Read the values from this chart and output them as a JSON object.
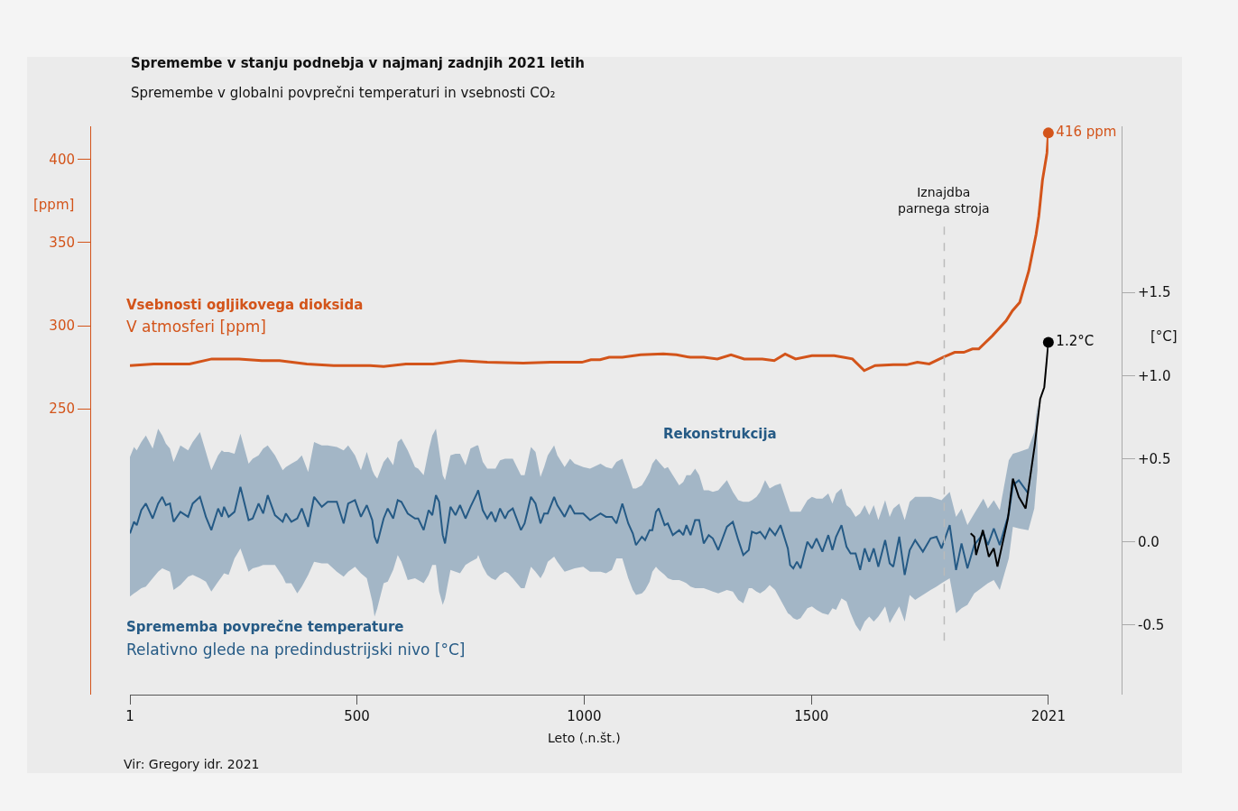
{
  "chart_data": {
    "type": "line",
    "title": "Spremembe v stanju podnebja v najmanj zadnjih 2021 letih",
    "subtitle": "Spremembe v globalni povprečni temperaturi in vsebnosti CO₂",
    "xlabel": "Leto (.n.št.)",
    "ylabel": "[ppm]",
    "y2label": "[°C]",
    "annotations": [
      "Vsebnosti ogljikovega dioksida",
      "V atmosferi [ppm]",
      "Sprememba povprečne temperature",
      "Relativno glede na predindustrijski nivo [°C]",
      "Vir: Gregory idr. 2021"
    ],
    "xlim": [
      1,
      2021
    ],
    "xticks": [
      1,
      500,
      1000,
      1500,
      2021
    ],
    "ylim": [
      78,
      420
    ],
    "yticks": [
      250,
      300,
      350,
      400
    ],
    "y2lim": [
      -0.92,
      2.5
    ],
    "y2ticks": [
      {
        "value": -0.5,
        "label": "-0.5"
      },
      {
        "value": 0,
        "label": "0.0"
      },
      {
        "value": 0.5,
        "label": "+0.5"
      },
      {
        "value": 1,
        "label": "+1.0"
      },
      {
        "value": 1.5,
        "label": "+1.5"
      }
    ],
    "grid": false,
    "legend": false,
    "ref_lines": [
      {
        "axis": "x",
        "value": 1792,
        "label": "Iznajdba\nparnega stroja",
        "color": "#bbbbbb",
        "line_style": "dashed"
      }
    ],
    "series": [
      {
        "color": "#d3541a",
        "axis": "y",
        "x": [
          1,
          53,
          132,
          181,
          241,
          291,
          330,
          390,
          449,
          529,
          559,
          608,
          668,
          727,
          787,
          866,
          926,
          995,
          1015,
          1035,
          1055,
          1084,
          1124,
          1174,
          1203,
          1233,
          1263,
          1293,
          1323,
          1352,
          1392,
          1418,
          1442,
          1465,
          1501,
          1550,
          1570,
          1590,
          1616,
          1640,
          1680,
          1709,
          1733,
          1759,
          1789,
          1815,
          1835,
          1854,
          1868,
          1898,
          1928,
          1942,
          1958,
          1978,
          1994,
          2000,
          2008,
          2018,
          2021
        ],
        "values": [
          276,
          277,
          277,
          280,
          280,
          279,
          279,
          277,
          276,
          276,
          275.5,
          277,
          277,
          279,
          278,
          277.5,
          278,
          278,
          279.5,
          279.5,
          281,
          281,
          282.5,
          283,
          282.5,
          281,
          281,
          280,
          282.5,
          280,
          280,
          279,
          283,
          280,
          282,
          282,
          281,
          280,
          273,
          276,
          276.5,
          276.5,
          278,
          277,
          281,
          284,
          284,
          286,
          286,
          294,
          303,
          309,
          314,
          333,
          355,
          366,
          387.5,
          404,
          416
        ],
        "value_labels": [
          null,
          null,
          null,
          null,
          null,
          null,
          null,
          null,
          null,
          null,
          null,
          null,
          null,
          null,
          null,
          null,
          null,
          null,
          null,
          null,
          null,
          null,
          null,
          null,
          null,
          null,
          null,
          null,
          null,
          null,
          null,
          null,
          null,
          null,
          null,
          null,
          null,
          null,
          null,
          null,
          null,
          null,
          null,
          null,
          null,
          null,
          null,
          null,
          null,
          null,
          null,
          null,
          null,
          null,
          null,
          null,
          null,
          null,
          "416 ppm"
        ]
      },
      {
        "name": "Rekonstrukcija",
        "color": "#255a85",
        "axis": "y2",
        "x": [
          1,
          10,
          16,
          26,
          36,
          51,
          63,
          72,
          80,
          89,
          97,
          112,
          129,
          139,
          155,
          168,
          180,
          195,
          203,
          208,
          218,
          231,
          244,
          262,
          271,
          284,
          294,
          304,
          320,
          337,
          344,
          356,
          369,
          379,
          393,
          406,
          423,
          436,
          456,
          471,
          481,
          496,
          509,
          522,
          534,
          539,
          545,
          559,
          568,
          580,
          590,
          598,
          612,
          628,
          635,
          647,
          658,
          666,
          674,
          681,
          689,
          694,
          706,
          717,
          727,
          739,
          750,
          764,
          767,
          777,
          787,
          796,
          805,
          815,
          826,
          833,
          843,
          861,
          869,
          883,
          893,
          904,
          912,
          920,
          934,
          941,
          957,
          969,
          979,
          998,
          1013,
          1036,
          1048,
          1061,
          1071,
          1084,
          1097,
          1107,
          1114,
          1127,
          1134,
          1144,
          1150,
          1158,
          1164,
          1177,
          1184,
          1195,
          1209,
          1218,
          1225,
          1234,
          1244,
          1253,
          1263,
          1274,
          1283,
          1295,
          1314,
          1327,
          1339,
          1350,
          1362,
          1369,
          1379,
          1387,
          1398,
          1408,
          1420,
          1432,
          1448,
          1453,
          1460,
          1468,
          1476,
          1491,
          1501,
          1511,
          1524,
          1537,
          1546,
          1554,
          1566,
          1577,
          1586,
          1597,
          1607,
          1617,
          1627,
          1637,
          1647,
          1662,
          1672,
          1680,
          1693,
          1705,
          1716,
          1728,
          1745,
          1762,
          1775,
          1786,
          1804,
          1818,
          1830,
          1843,
          1858,
          1878,
          1888,
          1901,
          1914,
          1934,
          1943,
          1956,
          1977,
          1990,
          1997
        ],
        "values": [
          0.05,
          0.12,
          0.1,
          0.19,
          0.23,
          0.14,
          0.23,
          0.27,
          0.22,
          0.23,
          0.12,
          0.18,
          0.15,
          0.23,
          0.27,
          0.15,
          0.07,
          0.2,
          0.15,
          0.21,
          0.15,
          0.18,
          0.33,
          0.13,
          0.14,
          0.23,
          0.17,
          0.28,
          0.16,
          0.12,
          0.17,
          0.12,
          0.14,
          0.2,
          0.09,
          0.27,
          0.21,
          0.24,
          0.24,
          0.11,
          0.23,
          0.25,
          0.15,
          0.22,
          0.13,
          0.03,
          -0.01,
          0.14,
          0.2,
          0.14,
          0.25,
          0.24,
          0.17,
          0.14,
          0.14,
          0.07,
          0.19,
          0.16,
          0.28,
          0.24,
          0.04,
          -0.01,
          0.21,
          0.16,
          0.22,
          0.14,
          0.21,
          0.29,
          0.31,
          0.19,
          0.14,
          0.18,
          0.12,
          0.2,
          0.14,
          0.18,
          0.2,
          0.07,
          0.11,
          0.27,
          0.23,
          0.11,
          0.17,
          0.17,
          0.27,
          0.22,
          0.15,
          0.22,
          0.17,
          0.17,
          0.13,
          0.17,
          0.15,
          0.15,
          0.11,
          0.23,
          0.11,
          0.05,
          -0.02,
          0.03,
          0.01,
          0.07,
          0.07,
          0.18,
          0.2,
          0.1,
          0.11,
          0.04,
          0.07,
          0.04,
          0.1,
          0.04,
          0.13,
          0.13,
          -0.01,
          0.04,
          0.02,
          -0.05,
          0.09,
          0.12,
          0.01,
          -0.08,
          -0.05,
          0.06,
          0.05,
          0.06,
          0.02,
          0.08,
          0.04,
          0.1,
          -0.04,
          -0.14,
          -0.16,
          -0.12,
          -0.16,
          0.0,
          -0.04,
          0.02,
          -0.06,
          0.04,
          -0.05,
          0.03,
          0.1,
          -0.03,
          -0.07,
          -0.07,
          -0.17,
          -0.04,
          -0.12,
          -0.04,
          -0.15,
          0.01,
          -0.13,
          -0.15,
          0.03,
          -0.2,
          -0.05,
          0.01,
          -0.06,
          0.02,
          0.03,
          -0.04,
          0.1,
          -0.17,
          -0.01,
          -0.16,
          -0.02,
          0.05,
          -0.02,
          0.08,
          -0.02,
          0.17,
          0.34,
          0.37,
          0.29,
          null,
          null
        ],
        "upper": [
          0.51,
          0.57,
          0.55,
          0.6,
          0.64,
          0.56,
          0.68,
          0.64,
          0.59,
          0.56,
          0.48,
          0.58,
          0.55,
          0.6,
          0.66,
          0.54,
          0.43,
          0.52,
          0.55,
          0.54,
          0.54,
          0.53,
          0.65,
          0.47,
          0.5,
          0.52,
          0.56,
          0.58,
          0.52,
          0.43,
          0.45,
          0.47,
          0.49,
          0.52,
          0.42,
          0.6,
          0.58,
          0.58,
          0.57,
          0.55,
          0.58,
          0.52,
          0.43,
          0.54,
          0.43,
          0.4,
          0.38,
          0.48,
          0.51,
          0.46,
          0.6,
          0.62,
          0.55,
          0.45,
          0.44,
          0.4,
          0.55,
          0.64,
          0.68,
          0.55,
          0.4,
          0.37,
          0.52,
          0.53,
          0.53,
          0.46,
          0.56,
          0.58,
          0.58,
          0.48,
          0.44,
          0.44,
          0.44,
          0.49,
          0.5,
          0.5,
          0.5,
          0.4,
          0.4,
          0.57,
          0.54,
          0.39,
          0.45,
          0.52,
          0.58,
          0.52,
          0.45,
          0.5,
          0.47,
          0.45,
          0.44,
          0.47,
          0.45,
          0.44,
          0.48,
          0.5,
          0.4,
          0.32,
          0.32,
          0.34,
          0.37,
          0.42,
          0.47,
          0.5,
          0.48,
          0.44,
          0.45,
          0.4,
          0.34,
          0.36,
          0.4,
          0.4,
          0.44,
          0.4,
          0.31,
          0.31,
          0.3,
          0.31,
          0.37,
          0.3,
          0.25,
          0.24,
          0.24,
          0.25,
          0.27,
          0.3,
          0.37,
          0.32,
          0.34,
          0.35,
          0.22,
          0.18,
          0.18,
          0.18,
          0.18,
          0.25,
          0.27,
          0.26,
          0.26,
          0.29,
          0.23,
          0.29,
          0.32,
          0.22,
          0.2,
          0.15,
          0.17,
          0.22,
          0.16,
          0.22,
          0.13,
          0.25,
          0.15,
          0.2,
          0.23,
          0.13,
          0.24,
          0.27,
          0.27,
          0.27,
          0.26,
          0.25,
          0.3,
          0.15,
          0.2,
          0.1,
          0.17,
          0.26,
          0.2,
          0.25,
          0.19,
          0.49,
          0.53,
          0.54,
          0.56,
          0.66,
          0.83
        ],
        "lower": [
          -0.33,
          -0.31,
          -0.3,
          -0.28,
          -0.27,
          -0.22,
          -0.18,
          -0.16,
          -0.17,
          -0.18,
          -0.29,
          -0.26,
          -0.21,
          -0.2,
          -0.22,
          -0.24,
          -0.3,
          -0.24,
          -0.21,
          -0.19,
          -0.2,
          -0.1,
          -0.04,
          -0.18,
          -0.16,
          -0.15,
          -0.14,
          -0.14,
          -0.14,
          -0.21,
          -0.25,
          -0.25,
          -0.31,
          -0.27,
          -0.2,
          -0.12,
          -0.13,
          -0.13,
          -0.18,
          -0.21,
          -0.18,
          -0.15,
          -0.19,
          -0.22,
          -0.36,
          -0.45,
          -0.4,
          -0.25,
          -0.24,
          -0.17,
          -0.08,
          -0.12,
          -0.23,
          -0.22,
          -0.23,
          -0.25,
          -0.2,
          -0.14,
          -0.14,
          -0.3,
          -0.38,
          -0.34,
          -0.17,
          -0.18,
          -0.19,
          -0.14,
          -0.12,
          -0.1,
          -0.08,
          -0.15,
          -0.2,
          -0.22,
          -0.23,
          -0.2,
          -0.18,
          -0.19,
          -0.22,
          -0.28,
          -0.28,
          -0.15,
          -0.18,
          -0.22,
          -0.18,
          -0.12,
          -0.09,
          -0.12,
          -0.18,
          -0.17,
          -0.16,
          -0.15,
          -0.18,
          -0.18,
          -0.19,
          -0.17,
          -0.1,
          -0.1,
          -0.22,
          -0.29,
          -0.32,
          -0.31,
          -0.29,
          -0.24,
          -0.18,
          -0.15,
          -0.17,
          -0.2,
          -0.22,
          -0.23,
          -0.23,
          -0.24,
          -0.25,
          -0.27,
          -0.28,
          -0.28,
          -0.28,
          -0.29,
          -0.3,
          -0.31,
          -0.29,
          -0.3,
          -0.35,
          -0.37,
          -0.28,
          -0.28,
          -0.3,
          -0.31,
          -0.29,
          -0.26,
          -0.29,
          -0.35,
          -0.43,
          -0.44,
          -0.46,
          -0.47,
          -0.46,
          -0.4,
          -0.39,
          -0.41,
          -0.43,
          -0.44,
          -0.4,
          -0.41,
          -0.34,
          -0.36,
          -0.43,
          -0.5,
          -0.54,
          -0.48,
          -0.45,
          -0.48,
          -0.45,
          -0.39,
          -0.49,
          -0.45,
          -0.39,
          -0.48,
          -0.32,
          -0.35,
          -0.32,
          -0.29,
          -0.27,
          -0.25,
          -0.22,
          -0.43,
          -0.4,
          -0.38,
          -0.31,
          -0.27,
          -0.25,
          -0.23,
          -0.29,
          -0.1,
          0.09,
          0.08,
          0.07,
          0.2,
          0.43
        ]
      },
      {
        "color": "#000000",
        "axis": "y2",
        "x": [
          1850,
          1858,
          1862,
          1877,
          1890,
          1901,
          1909,
          1932,
          1943,
          1956,
          1971,
          1991,
          2003,
          2012,
          2021
        ],
        "values": [
          0.05,
          0.03,
          -0.08,
          0.07,
          -0.09,
          -0.04,
          -0.15,
          0.14,
          0.38,
          0.27,
          0.2,
          0.58,
          0.86,
          0.93,
          1.2
        ],
        "value_labels": [
          null,
          null,
          null,
          null,
          null,
          null,
          null,
          null,
          null,
          null,
          null,
          null,
          null,
          null,
          "1.2°C"
        ]
      }
    ]
  }
}
